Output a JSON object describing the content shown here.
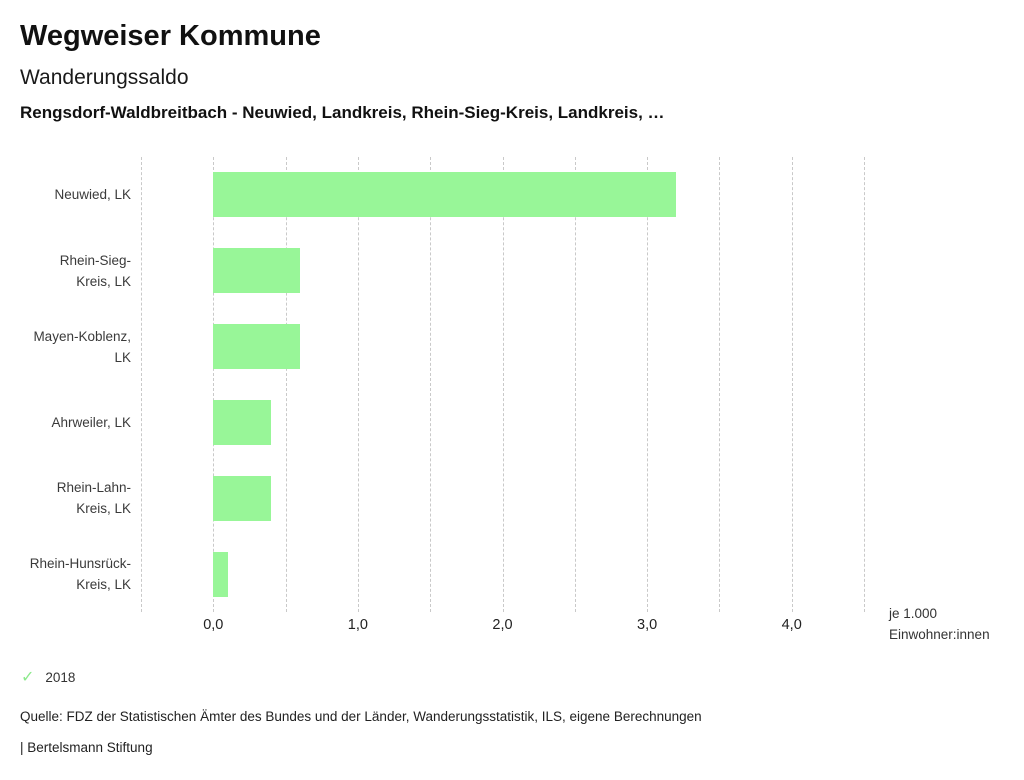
{
  "header": {
    "title": "Wegweiser Kommune",
    "subtitle": "Wanderungssaldo",
    "context_line": "Rengsdorf-Waldbreitbach - Neuwied, Landkreis, Rhein-Sieg-Kreis, Landkreis, …"
  },
  "chart_data": {
    "type": "bar",
    "orientation": "horizontal",
    "title": "Wanderungssaldo",
    "categories": [
      "Neuwied, LK",
      "Rhein-Sieg-Kreis, LK",
      "Mayen-Koblenz, LK",
      "Ahrweiler, LK",
      "Rhein-Lahn-Kreis, LK",
      "Rhein-Hunsrück-Kreis, LK"
    ],
    "category_display_lines": [
      [
        "Neuwied, LK"
      ],
      [
        "Rhein-Sieg-",
        "Kreis, LK"
      ],
      [
        "Mayen-Koblenz,",
        "LK"
      ],
      [
        "Ahrweiler, LK"
      ],
      [
        "Rhein-Lahn-",
        "Kreis, LK"
      ],
      [
        "Rhein-Hunsrück-",
        "Kreis, LK"
      ]
    ],
    "series": [
      {
        "name": "2018",
        "values": [
          3.2,
          0.6,
          0.6,
          0.4,
          0.4,
          0.1
        ]
      }
    ],
    "xlabel": "je 1.000\nEinwohner:innen",
    "ylabel": "",
    "xlim": [
      -0.5,
      4.5
    ],
    "x_ticks_labels": [
      "0,0",
      "1,0",
      "2,0",
      "3,0",
      "4,0"
    ],
    "x_tick_values": [
      0,
      1,
      2,
      3,
      4
    ],
    "gridline_interval": 0.5,
    "grid": "vertical-dashed",
    "bar_color": "#98f698",
    "grid_color": "#c9c9c9",
    "legend_position": "bottom-left"
  },
  "legend": {
    "items": [
      {
        "icon": "check-icon",
        "glyph": "✓",
        "color": "#8ce98c",
        "label": "2018"
      }
    ]
  },
  "footer": {
    "source": "Quelle: FDZ der Statistischen Ämter des Bundes und der Länder, Wanderungsstatistik, ILS, eigene Berechnungen",
    "brand": "| Bertelsmann Stiftung"
  }
}
